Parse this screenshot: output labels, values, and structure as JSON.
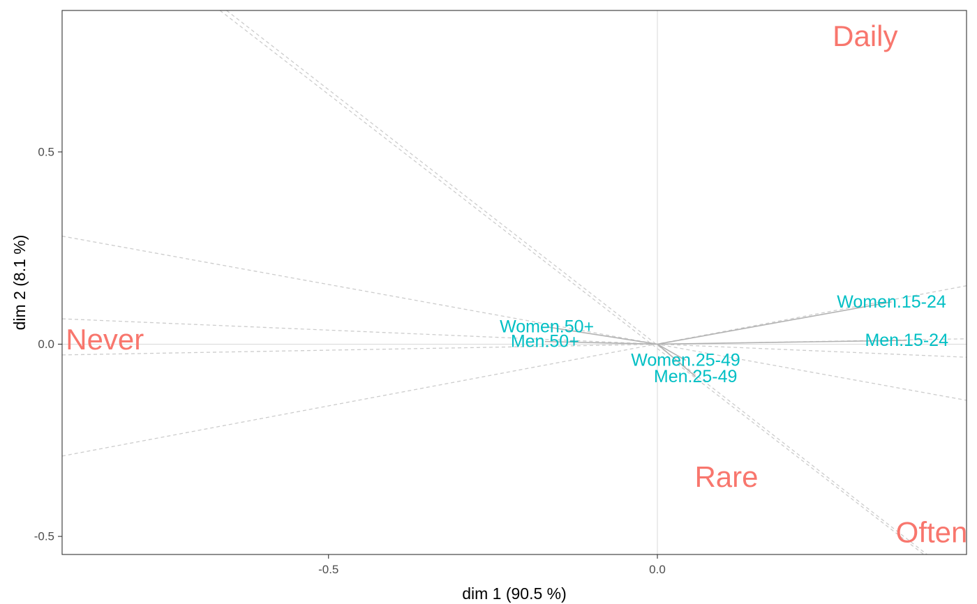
{
  "chart_data": {
    "type": "scatter",
    "title": "",
    "xlabel": "dim 1 (90.5 %)",
    "ylabel": "dim 2 (8.1 %)",
    "xlim": [
      -0.905,
      0.47
    ],
    "ylim": [
      -0.547,
      0.868
    ],
    "x_ticks": [
      {
        "value": -0.5,
        "label": "-0.5"
      },
      {
        "value": 0.0,
        "label": "0.0"
      }
    ],
    "y_ticks": [
      {
        "value": 0.5,
        "label": "0.5"
      },
      {
        "value": 0.0,
        "label": "0.0"
      },
      {
        "value": -0.5,
        "label": "-0.5"
      }
    ],
    "grid": false,
    "reference_lines": {
      "x": 0,
      "y": 0
    },
    "series": [
      {
        "kind": "rows",
        "color": "#00bfc4",
        "points": [
          {
            "label": "Women.15-24",
            "x": 0.356,
            "y": 0.11
          },
          {
            "label": "Men.15-24",
            "x": 0.379,
            "y": 0.01
          },
          {
            "label": "Women.50+",
            "x": -0.168,
            "y": 0.045
          },
          {
            "label": "Men.50+",
            "x": -0.171,
            "y": 0.007
          },
          {
            "label": "Women.25-49",
            "x": 0.043,
            "y": -0.042
          },
          {
            "label": "Men.25-49",
            "x": 0.058,
            "y": -0.084
          }
        ]
      },
      {
        "kind": "columns",
        "color": "#f8766d",
        "points": [
          {
            "label": "Daily",
            "x": 0.316,
            "y": 0.802
          },
          {
            "label": "Never",
            "x": -0.84,
            "y": 0.013
          },
          {
            "label": "Rare",
            "x": 0.105,
            "y": -0.345
          },
          {
            "label": "Often",
            "x": 0.417,
            "y": -0.489
          }
        ]
      }
    ],
    "segments_color": "#b3b3b3",
    "projection_color": "#cccccc",
    "segments": [
      {
        "from": [
          0,
          0
        ],
        "to": [
          0.356,
          0.11
        ]
      },
      {
        "from": [
          0,
          0
        ],
        "to": [
          0.379,
          0.01
        ]
      },
      {
        "from": [
          0,
          0
        ],
        "to": [
          -0.168,
          0.045
        ]
      },
      {
        "from": [
          0,
          0
        ],
        "to": [
          -0.171,
          0.007
        ]
      },
      {
        "from": [
          0,
          0
        ],
        "to": [
          0.043,
          -0.042
        ]
      },
      {
        "from": [
          0,
          0
        ],
        "to": [
          0.058,
          -0.084
        ]
      }
    ],
    "projection_lines": [
      {
        "from": [
          -0.905,
          0.281
        ],
        "to": [
          0.47,
          -0.146
        ]
      },
      {
        "from": [
          -0.905,
          0.066
        ],
        "to": [
          0.47,
          -0.034
        ]
      },
      {
        "from": [
          -0.905,
          -0.028
        ],
        "to": [
          0.47,
          0.014
        ]
      },
      {
        "from": [
          -0.905,
          -0.291
        ],
        "to": [
          0.47,
          0.152
        ]
      },
      {
        "from": [
          -0.655,
          0.868
        ],
        "to": [
          0.41,
          -0.547
        ]
      },
      {
        "from": [
          -0.665,
          0.868
        ],
        "to": [
          0.405,
          -0.547
        ]
      }
    ]
  }
}
